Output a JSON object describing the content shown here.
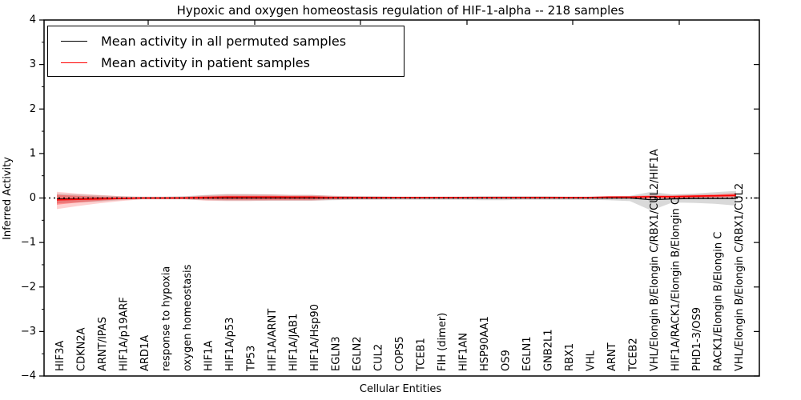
{
  "title": "Hypoxic and oxygen homeostasis regulation of HIF-1-alpha -- 218 samples",
  "axes": {
    "ylabel": "Inferred Activity",
    "xlabel": "Cellular Entities",
    "yticks": [
      "4",
      "3",
      "2",
      "1",
      "0",
      "−1",
      "−2",
      "−3",
      "−4"
    ]
  },
  "legend": {
    "items": [
      {
        "label": "Mean activity in all permuted samples",
        "color": "#000000"
      },
      {
        "label": "Mean activity in patient samples",
        "color": "#ff0000"
      }
    ]
  },
  "chart_data": {
    "type": "line",
    "title": "Hypoxic and oxygen homeostasis regulation of HIF-1-alpha -- 218 samples",
    "xlabel": "Cellular Entities",
    "ylabel": "Inferred Activity",
    "ylim": [
      -4,
      4
    ],
    "grid": false,
    "legend_position": "upper left",
    "categories": [
      "HIF3A",
      "CDKN2A",
      "ARNT/IPAS",
      "HIF1A/p19ARF",
      "ARD1A",
      "response to hypoxia",
      "oxygen homeostasis",
      "HIF1A",
      "HIF1A/p53",
      "TP53",
      "HIF1A/ARNT",
      "HIF1A/JAB1",
      "HIF1A/Hsp90",
      "EGLN3",
      "EGLN2",
      "CUL2",
      "COPS5",
      "TCEB1",
      "FIH (dimer)",
      "HIF1AN",
      "HSP90AA1",
      "OS9",
      "EGLN1",
      "GNB2L1",
      "RBX1",
      "VHL",
      "ARNT",
      "TCEB2",
      "VHL/Elongin B/Elongin C/RBX1/CUL2/HIF1A",
      "HIF1A/RACK1/Elongin B/Elongin C",
      "PHD1-3/OS9",
      "RACK1/Elongin B/Elongin C",
      "VHL/Elongin B/Elongin C/RBX1/CUL2"
    ],
    "series": [
      {
        "name": "Mean activity in all permuted samples",
        "color": "#000000",
        "style": "solid",
        "width": 1.3,
        "values": [
          -0.02,
          -0.02,
          -0.01,
          -0.01,
          0,
          0,
          0,
          0,
          0,
          0,
          0,
          0,
          0,
          0,
          0,
          0,
          0,
          0,
          0,
          0,
          0,
          0,
          0,
          0,
          0,
          0,
          0,
          0,
          -0.04,
          -0.02,
          -0.01,
          -0.01,
          -0.01
        ]
      },
      {
        "name": "Mean activity in patient samples",
        "color": "#ff0000",
        "style": "solid",
        "width": 1.7,
        "values": [
          -0.04,
          -0.03,
          -0.02,
          -0.01,
          0,
          0,
          0,
          0.01,
          0.02,
          0.02,
          0.02,
          0.02,
          0.02,
          0.01,
          0.01,
          0.01,
          0.01,
          0.01,
          0.01,
          0.01,
          0.01,
          0.01,
          0.01,
          0.01,
          0.01,
          0.01,
          0.02,
          0.02,
          0.03,
          0.03,
          0.04,
          0.05,
          0.06
        ]
      }
    ],
    "zero_line": {
      "y": 0,
      "style": "dotted",
      "color": "#000000"
    },
    "bands": [
      {
        "name": "permuted-range",
        "color": "rgba(0,0,0,0.15)",
        "upper": [
          0.1,
          0.08,
          0.06,
          0.04,
          0.03,
          0.03,
          0.04,
          0.07,
          0.09,
          0.09,
          0.08,
          0.07,
          0.07,
          0.05,
          0.04,
          0.04,
          0.03,
          0.03,
          0.03,
          0.03,
          0.04,
          0.04,
          0.04,
          0.04,
          0.03,
          0.03,
          0.04,
          0.05,
          0.14,
          0.08,
          0.1,
          0.13,
          0.16
        ],
        "lower": [
          -0.12,
          -0.1,
          -0.08,
          -0.05,
          -0.03,
          -0.03,
          -0.03,
          -0.05,
          -0.06,
          -0.06,
          -0.06,
          -0.06,
          -0.06,
          -0.05,
          -0.04,
          -0.04,
          -0.04,
          -0.04,
          -0.04,
          -0.04,
          -0.05,
          -0.05,
          -0.04,
          -0.04,
          -0.04,
          -0.04,
          -0.05,
          -0.07,
          -0.28,
          -0.1,
          -0.11,
          -0.13,
          -0.17
        ]
      },
      {
        "name": "patient-range-outer",
        "color": "rgba(255,0,0,0.18)",
        "upper": [
          0.14,
          0.1,
          0.07,
          0.04,
          0.02,
          0.02,
          0.03,
          0.06,
          0.08,
          0.08,
          0.08,
          0.07,
          0.07,
          0.05,
          0.04,
          0.03,
          0.03,
          0.03,
          0.03,
          0.03,
          0.03,
          0.03,
          0.03,
          0.03,
          0.03,
          0.03,
          0.04,
          0.04,
          0.07,
          0.07,
          0.08,
          0.09,
          0.12
        ],
        "lower": [
          -0.25,
          -0.18,
          -0.12,
          -0.07,
          -0.03,
          -0.03,
          -0.03,
          -0.06,
          -0.07,
          -0.07,
          -0.06,
          -0.06,
          -0.06,
          -0.04,
          -0.03,
          -0.03,
          -0.02,
          -0.02,
          -0.02,
          -0.02,
          -0.02,
          -0.02,
          -0.02,
          -0.02,
          -0.02,
          -0.02,
          -0.02,
          -0.02,
          -0.02,
          -0.01,
          -0.01,
          0,
          0
        ],
        "upper_inner": null
      },
      {
        "name": "patient-range-inner",
        "color": "rgba(255,0,0,0.33)",
        "upper": [
          0.07,
          0.05,
          0.03,
          0.02,
          0.015,
          0.015,
          0.02,
          0.04,
          0.05,
          0.05,
          0.05,
          0.04,
          0.04,
          0.03,
          0.02,
          0.02,
          0.02,
          0.02,
          0.02,
          0.02,
          0.02,
          0.02,
          0.02,
          0.02,
          0.02,
          0.02,
          0.03,
          0.03,
          0.05,
          0.05,
          0.06,
          0.07,
          0.09
        ],
        "lower": [
          -0.15,
          -0.1,
          -0.06,
          -0.03,
          -0.015,
          -0.015,
          -0.015,
          -0.03,
          -0.04,
          -0.04,
          -0.04,
          -0.04,
          -0.04,
          -0.02,
          -0.02,
          -0.02,
          -0.01,
          -0.01,
          -0.01,
          -0.01,
          -0.01,
          -0.01,
          -0.01,
          -0.01,
          -0.01,
          -0.01,
          -0.01,
          -0.01,
          0,
          0,
          0.01,
          0.02,
          0.03
        ]
      }
    ]
  }
}
